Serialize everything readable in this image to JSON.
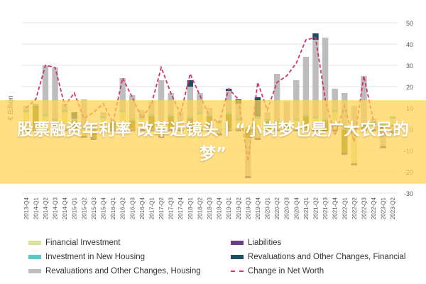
{
  "banner": {
    "text": "股票融资年利率 改革近镜头丨“小岗梦也是广大农民的梦”"
  },
  "colors": {
    "financial_investment": "#d9e39b",
    "investment_new_housing": "#5bc9c3",
    "revaluations_housing": "#bdbdbd",
    "liabilities": "#6b3f87",
    "revaluations_financial": "#1d4e63",
    "net_worth_line": "#d6336c",
    "dark_olive": "#7a7a1f"
  },
  "chart_data": {
    "type": "bar",
    "stacked": true,
    "ylabel": "€ Billion",
    "ylim": [
      -30,
      50
    ],
    "yticks": [
      -30,
      -20,
      -10,
      0,
      10,
      20,
      30,
      40,
      50
    ],
    "grid": true,
    "legend_position": "bottom",
    "categories": [
      "2013-Q4",
      "2014-Q1",
      "2014-Q2",
      "2014-Q3",
      "2014-Q4",
      "2015-Q1",
      "2015-Q2",
      "2015-Q3",
      "2015-Q4",
      "2016-Q1",
      "2016-Q2",
      "2016-Q3",
      "2016-Q4",
      "2017-Q1",
      "2017-Q2",
      "2017-Q3",
      "2017-Q4",
      "2018-Q1",
      "2018-Q2",
      "2018-Q3",
      "2018-Q4",
      "2019-Q1",
      "2019-Q2",
      "2019-Q3",
      "2019-Q4",
      "2020-Q1",
      "2020-Q2",
      "2020-Q3",
      "2020-Q4",
      "2021-Q1",
      "2021-Q2",
      "2021-Q3",
      "2021-Q4",
      "2022-Q1",
      "2022-Q2",
      "2022-Q3",
      "2022-Q4",
      "2023-Q1",
      "2023-Q2"
    ],
    "series": [
      {
        "name": "Financial Investment",
        "color_key": "financial_investment",
        "values": [
          8,
          11,
          6,
          4,
          8,
          4,
          -3,
          -4,
          5,
          3,
          8,
          4,
          5,
          6,
          -3,
          6,
          3,
          5,
          7,
          6,
          3,
          7,
          4,
          -4,
          5,
          4,
          3,
          2,
          4,
          6,
          5,
          4,
          8,
          -11,
          -16,
          2,
          3,
          2,
          5
        ]
      },
      {
        "name": "Investment in New Housing",
        "color_key": "investment_new_housing",
        "values": [
          1,
          1,
          1,
          1,
          1,
          1,
          1,
          1,
          1,
          1,
          1,
          1,
          1,
          1,
          1,
          1,
          1,
          1,
          1,
          1,
          1,
          1,
          1,
          1,
          1,
          1,
          1,
          1,
          1,
          1,
          1,
          1,
          1,
          1,
          1,
          1,
          1,
          1,
          1
        ]
      },
      {
        "name": "Revaluations and Other Changes, Housing",
        "color_key": "revaluations_housing",
        "values": [
          2,
          0,
          23,
          24,
          3,
          0,
          13,
          2,
          2,
          0,
          15,
          11,
          3,
          6,
          22,
          10,
          4,
          14,
          9,
          3,
          -2,
          10,
          7,
          -18,
          -4,
          3,
          22,
          10,
          18,
          27,
          36,
          38,
          10,
          16,
          10,
          22,
          1,
          -8,
          -1
        ]
      },
      {
        "name": "Liabilities",
        "color_key": "liabilities",
        "values": [
          -1,
          -1,
          -1,
          -1,
          -1,
          -1,
          -1,
          -1,
          -1,
          -1,
          -1,
          -1,
          -1,
          -1,
          -1,
          -1,
          -1,
          -1,
          -1,
          -1,
          -1,
          -1,
          -1,
          -1,
          -1,
          -1,
          -1,
          -1,
          -1,
          -1,
          -1,
          -1,
          -1,
          -1,
          -1,
          -1,
          -1,
          -1,
          -1
        ]
      },
      {
        "name": "Revaluations and Other Changes, Financial",
        "color_key": "revaluations_financial",
        "values": [
          0,
          0,
          0,
          0,
          0,
          3,
          0,
          0,
          0,
          0,
          0,
          0,
          0,
          0,
          0,
          0,
          0,
          3,
          0,
          0,
          0,
          1,
          2,
          0,
          9,
          0,
          0,
          0,
          0,
          0,
          3,
          0,
          0,
          0,
          0,
          0,
          0,
          0,
          0
        ]
      }
    ],
    "line": {
      "name": "Change in Net Worth",
      "color_key": "net_worth_line",
      "values": [
        10,
        14,
        30,
        29,
        11,
        17,
        5,
        8,
        12,
        3,
        24,
        15,
        5,
        12,
        29,
        17,
        7,
        26,
        16,
        6,
        3,
        19,
        14,
        -15,
        22,
        9,
        22,
        25,
        31,
        42,
        43,
        14,
        -3,
        11,
        -6,
        25,
        4,
        -3,
        2
      ]
    }
  },
  "legend": [
    {
      "label": "Financial Investment",
      "color_key": "financial_investment",
      "kind": "bar"
    },
    {
      "label": "Liabilities",
      "color_key": "liabilities",
      "kind": "bar"
    },
    {
      "label": "Investment in New Housing",
      "color_key": "investment_new_housing",
      "kind": "bar"
    },
    {
      "label": "Revaluations and Other Changes, Financial",
      "color_key": "revaluations_financial",
      "kind": "bar"
    },
    {
      "label": "Revaluations and Other Changes, Housing",
      "color_key": "revaluations_housing",
      "kind": "bar"
    },
    {
      "label": "Change in Net Worth",
      "color_key": "net_worth_line",
      "kind": "line"
    }
  ]
}
